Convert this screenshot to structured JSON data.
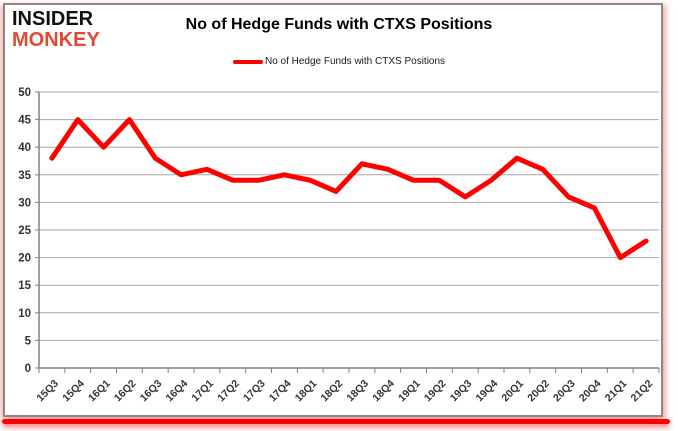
{
  "logo": {
    "line1": "INSIDER",
    "line2": "MONKEY",
    "line1_color": "#111111",
    "line2_color": "#e04a35"
  },
  "header": {
    "title": "No of Hedge Funds with CTXS Positions"
  },
  "legend": {
    "label": "No of Hedge Funds with CTXS Positions",
    "swatch_color": "#ff0000"
  },
  "chart_data": {
    "type": "line",
    "title": "No of Hedge Funds with CTXS Positions",
    "categories": [
      "15Q3",
      "15Q4",
      "16Q1",
      "16Q2",
      "16Q3",
      "16Q4",
      "17Q1",
      "17Q2",
      "17Q3",
      "17Q4",
      "18Q1",
      "18Q2",
      "18Q3",
      "18Q4",
      "19Q1",
      "19Q2",
      "19Q3",
      "19Q4",
      "20Q1",
      "20Q2",
      "20Q3",
      "20Q4",
      "21Q1",
      "21Q2"
    ],
    "series": [
      {
        "name": "No of Hedge Funds with CTXS Positions",
        "color": "#ff0000",
        "values": [
          38,
          45,
          40,
          45,
          38,
          35,
          36,
          34,
          34,
          35,
          34,
          32,
          37,
          36,
          34,
          34,
          31,
          34,
          38,
          36,
          31,
          29,
          20,
          23
        ]
      }
    ],
    "xlabel": "",
    "ylabel": "",
    "ylim": [
      0,
      50
    ],
    "ytick_step": 5,
    "ytick_labels": [
      "0",
      "5",
      "10",
      "15",
      "20",
      "25",
      "30",
      "35",
      "40",
      "45",
      "50"
    ],
    "grid": true,
    "legend_position": "top-center"
  },
  "style_colors": {
    "line_red": "#ff0000",
    "gridline": "#a6a6a6",
    "axis": "#808080",
    "tick_label": "#333333",
    "frame_border": "#8a8a8a",
    "bottom_bar": "#ff0000"
  }
}
